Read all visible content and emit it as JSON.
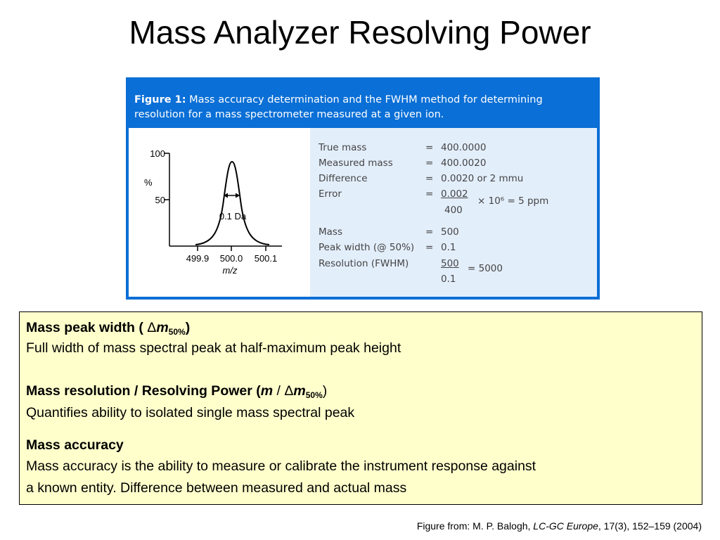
{
  "slide": {
    "title": "Mass Analyzer Resolving Power"
  },
  "figure": {
    "caption_label": "Figure 1:",
    "caption_line1": " Mass accuracy determination and the FWHM method for determining",
    "caption_line2": "resolution for a mass spectrometer measured at a given ion.",
    "plot": {
      "y_tick_100": "100",
      "y_tick_50": "50",
      "y_label": "%",
      "x_tick_1": "499.9",
      "x_tick_2": "500.0",
      "x_tick_3": "500.1",
      "x_label": "m/z",
      "fwhm_label": "0.1 Da"
    },
    "rows": {
      "true_mass_label": "True mass",
      "true_mass_value": "400.0000",
      "measured_label": "Measured mass",
      "measured_value": "400.0020",
      "difference_label": "Difference",
      "difference_value": "0.0020 or 2 mmu",
      "error_label": "Error",
      "error_numerator": "0.002",
      "error_denominator": "400",
      "error_result": "× 10⁶ = 5 ppm",
      "mass_label": "Mass",
      "mass_value": "500",
      "peak_width_label": "Peak width (@ 50%)",
      "peak_width_value": "0.1",
      "resolution_label": "Resolution (FWHM)",
      "resolution_numerator": "500",
      "resolution_denominator": "0.1",
      "resolution_result": "= 5000",
      "equals": "="
    }
  },
  "definitions": {
    "peak_width_heading_prefix": "Mass peak width ( ",
    "delta_symbol": "Δ",
    "m_symbol": "m",
    "subscript_50": "50%",
    "close_paren": ")",
    "peak_width_text": "Full width of mass spectral peak at half-maximum peak height",
    "resolution_heading_prefix": "Mass resolution / Resolving Power (",
    "slash": " / ",
    "resolution_text": "Quantifies ability to isolated single mass spectral peak",
    "accuracy_heading": "Mass accuracy",
    "accuracy_text_line1": "Mass accuracy is the ability to measure or calibrate the instrument response against",
    "accuracy_text_line2": "a known entity. Difference between measured and actual mass"
  },
  "source": {
    "prefix": "Figure from: M. P. Balogh, ",
    "journal": "LC-GC Europe",
    "suffix": ", 17(3), 152–159 (2004)"
  },
  "colors": {
    "figure_blue": "#0a6fd6",
    "data_panel": "#e3eefb",
    "definition_box": "#ffffcc"
  }
}
